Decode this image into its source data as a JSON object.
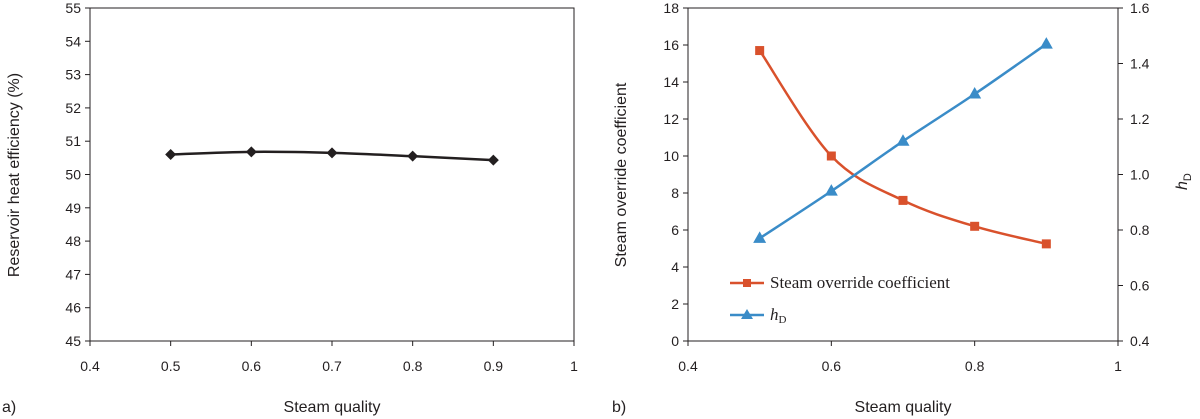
{
  "chart_data": [
    {
      "panel": "a)",
      "type": "line",
      "xlabel": "Steam quality",
      "ylabel": "Reservoir heat efficiency (%)",
      "xlim": [
        0.4,
        1
      ],
      "ylim": [
        45,
        55
      ],
      "xticks": [
        "0.4",
        "0.5",
        "0.6",
        "0.7",
        "0.8",
        "0.9",
        "1"
      ],
      "yticks": [
        "45",
        "46",
        "47",
        "48",
        "49",
        "50",
        "51",
        "52",
        "53",
        "54",
        "55"
      ],
      "grid": false,
      "series": [
        {
          "x": [
            0.5,
            0.6,
            0.7,
            0.8,
            0.9
          ],
          "values": [
            50.6,
            50.68,
            50.65,
            50.55,
            50.43
          ],
          "color": "#231f20",
          "marker": "diamond"
        }
      ]
    },
    {
      "panel": "b)",
      "type": "line",
      "xlabel": "Steam quality",
      "ylabel": "Steam override coefficient",
      "y2label": "h",
      "y2label_sub": "D",
      "xlim": [
        0.4,
        1
      ],
      "ylim": [
        0,
        18
      ],
      "y2lim": [
        0.4,
        1.6
      ],
      "xticks": [
        "0.4",
        "0.6",
        "0.8",
        "1"
      ],
      "yticks": [
        "0",
        "2",
        "4",
        "6",
        "8",
        "10",
        "12",
        "14",
        "16",
        "18"
      ],
      "y2ticks": [
        "0.4",
        "0.6",
        "0.8",
        "1.0",
        "1.2",
        "1.4",
        "1.6"
      ],
      "grid": false,
      "legend_position": "lower-left",
      "series": [
        {
          "name": "Steam override coefficient",
          "axis": "left",
          "x": [
            0.5,
            0.6,
            0.7,
            0.8,
            0.9
          ],
          "values": [
            15.7,
            10.0,
            7.6,
            6.2,
            5.25
          ],
          "color": "#d9512c",
          "marker": "square"
        },
        {
          "name": "h",
          "name_sub": "D",
          "axis": "right",
          "x": [
            0.5,
            0.6,
            0.7,
            0.8,
            0.9
          ],
          "values": [
            0.77,
            0.94,
            1.12,
            1.29,
            1.47
          ],
          "color": "#3a8cc8",
          "marker": "triangle"
        }
      ]
    }
  ]
}
